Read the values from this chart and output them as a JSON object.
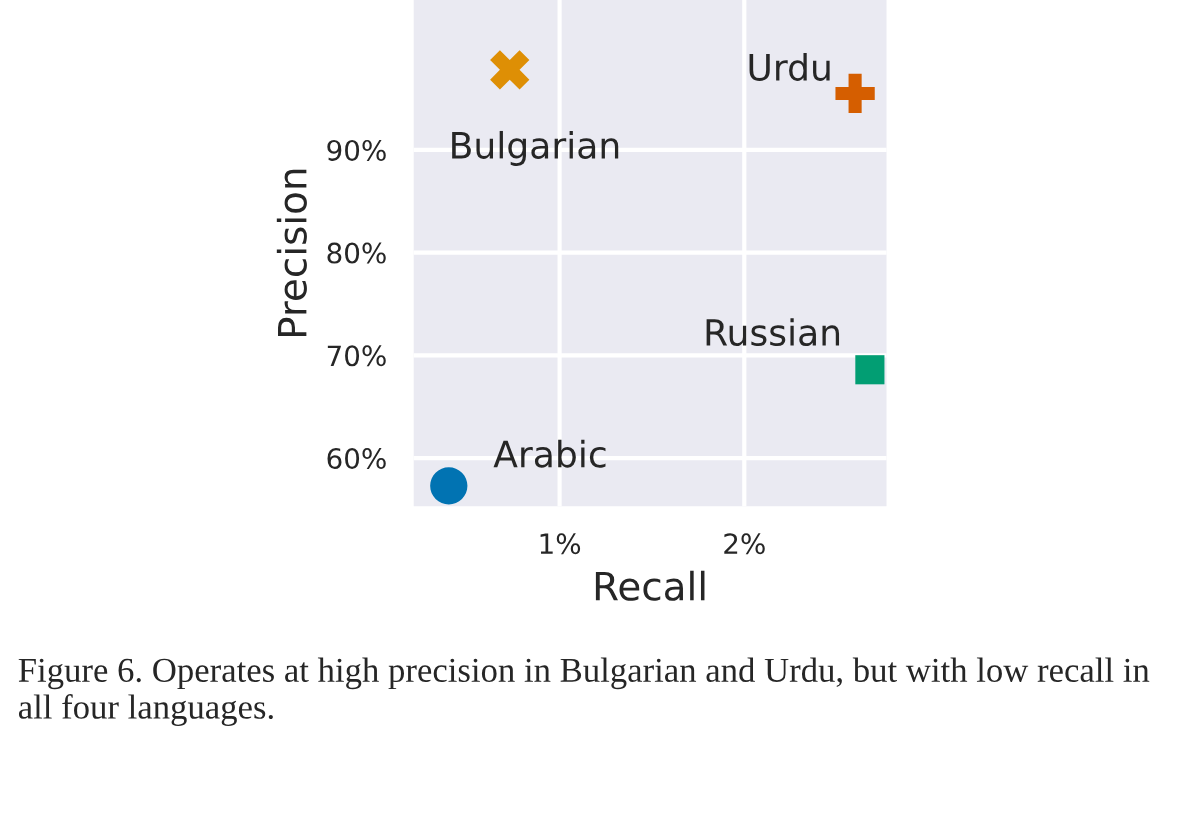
{
  "chart_data": {
    "type": "scatter",
    "xlabel": "Recall",
    "ylabel": "Precision",
    "xlim": [
      0.21,
      2.77
    ],
    "ylim": [
      55.3,
      104.6
    ],
    "xticks": [
      {
        "value": 1,
        "label": "1%"
      },
      {
        "value": 2,
        "label": "2%"
      }
    ],
    "yticks": [
      {
        "value": 60,
        "label": "60%"
      },
      {
        "value": 70,
        "label": "70%"
      },
      {
        "value": 80,
        "label": "80%"
      },
      {
        "value": 90,
        "label": "90%"
      }
    ],
    "grid": true,
    "series": [
      {
        "name": "Arabic",
        "color": "#0173b2",
        "marker": "circle",
        "x": [
          0.4
        ],
        "values": [
          57.3
        ]
      },
      {
        "name": "Bulgarian",
        "color": "#de8f05",
        "marker": "cross",
        "x": [
          0.73
        ],
        "values": [
          97.8
        ]
      },
      {
        "name": "Urdu",
        "color": "#d55e00",
        "marker": "plus",
        "x": [
          2.6
        ],
        "values": [
          95.5
        ]
      },
      {
        "name": "Russian",
        "color": "#029e73",
        "marker": "square",
        "x": [
          2.68
        ],
        "values": [
          68.6
        ]
      }
    ],
    "annotations": [
      "Figure 6. Operates at high precision in Bulgarian and Urdu, but with low recall in all four languages."
    ]
  }
}
